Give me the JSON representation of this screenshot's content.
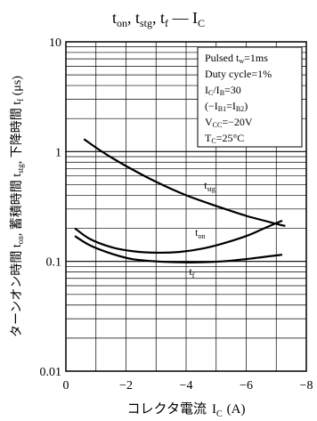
{
  "chart_data": {
    "type": "line",
    "title": {
      "base": "t",
      "subs": [
        "on",
        "stg",
        "f"
      ],
      "separator": ", ",
      "dash": " — ",
      "rhs_base": "I",
      "rhs_sub": "C"
    },
    "xlabel": {
      "prefix": "コレクタ電流",
      "var": "I",
      "sub": "C",
      "unit": "(A)"
    },
    "ylabel": {
      "p1": "ターンオン時間 t",
      "s1": "on",
      "p2": ", 蓄積時間 t",
      "s2": "stg",
      "p3": ", 下降時間 t",
      "s3": "f",
      "unit": " (μs)"
    },
    "x_axis": {
      "min": 0,
      "max": -8,
      "ticks": [
        0,
        -2,
        -4,
        -6,
        -8
      ],
      "tick_labels": [
        "0",
        "−2",
        "−4",
        "−6",
        "−8"
      ]
    },
    "y_axis": {
      "scale": "log",
      "min": 0.01,
      "max": 10,
      "ticks": [
        0.01,
        0.1,
        1,
        10
      ],
      "tick_labels": [
        "0.01",
        "0.1",
        "1",
        "10"
      ]
    },
    "grid": true,
    "legend_box": {
      "position": "top-right",
      "lines": [
        {
          "text": "Pulsed t",
          "sub": "w",
          "after": "=1ms"
        },
        {
          "text": "Duty cycle=1%"
        },
        {
          "text": "I",
          "sub": "C",
          "after": "/I",
          "sub2": "B",
          "after2": "=30"
        },
        {
          "text": "(−I",
          "sub": "B1",
          "after": "=I",
          "sub2": "B2",
          "after2": ")"
        },
        {
          "text": "V",
          "sub": "CC",
          "after": "=−20V"
        },
        {
          "text": "T",
          "sub": "C",
          "after": "=25°C"
        }
      ]
    },
    "series": [
      {
        "name": "tstg",
        "label_base": "t",
        "label_sub": "stg",
        "label_x": -4.6,
        "label_y": 0.46,
        "x": [
          -0.6,
          -1.2,
          -2,
          -3,
          -4,
          -5,
          -6,
          -7,
          -7.3
        ],
        "y": [
          1.3,
          1.0,
          0.74,
          0.53,
          0.4,
          0.32,
          0.26,
          0.22,
          0.21
        ]
      },
      {
        "name": "ton",
        "label_base": "t",
        "label_sub": "on",
        "label_x": -4.3,
        "label_y": 0.17,
        "x": [
          -0.3,
          -0.8,
          -1.5,
          -2.2,
          -3,
          -3.8,
          -4.5,
          -5.2,
          -6,
          -6.6,
          -7.2
        ],
        "y": [
          0.2,
          0.16,
          0.135,
          0.124,
          0.12,
          0.122,
          0.13,
          0.145,
          0.17,
          0.2,
          0.235
        ]
      },
      {
        "name": "tf",
        "label_base": "t",
        "label_sub": "f",
        "label_x": -4.1,
        "label_y": 0.075,
        "x": [
          -0.3,
          -0.8,
          -1.5,
          -2.2,
          -3,
          -3.8,
          -4.5,
          -5.2,
          -6,
          -6.6,
          -7.2
        ],
        "y": [
          0.17,
          0.14,
          0.118,
          0.105,
          0.1,
          0.098,
          0.098,
          0.1,
          0.105,
          0.11,
          0.115
        ]
      }
    ]
  }
}
